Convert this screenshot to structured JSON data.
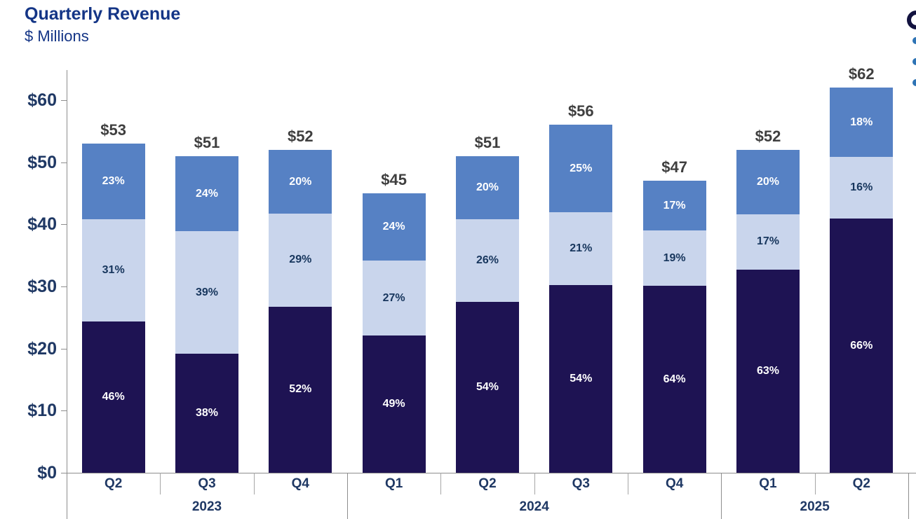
{
  "header": {
    "title": "Quarterly Revenue",
    "subtitle": "$ Millions"
  },
  "colors": {
    "segment_bottom": "#1e1353",
    "segment_middle": "#c9d5ec",
    "segment_top": "#5681c4",
    "title_text": "#143586",
    "axis_label_text": "#1f3864",
    "total_label_text": "#3f3f3f",
    "axis_line": "#8e8e8e",
    "legend_bullet": "#2e74b5"
  },
  "chart_data": {
    "type": "bar",
    "stacked": true,
    "title": "Quarterly Revenue",
    "ylabel": "$ Millions",
    "ylim": [
      0,
      64.85
    ],
    "grid": false,
    "legend_position": "clipped-off-right-edge",
    "y_axis_ticks": [
      {
        "value": 0,
        "label": "$0"
      },
      {
        "value": 10,
        "label": "$10"
      },
      {
        "value": 20,
        "label": "$20"
      },
      {
        "value": 30,
        "label": "$30"
      },
      {
        "value": 40,
        "label": "$40"
      },
      {
        "value": 50,
        "label": "$50"
      },
      {
        "value": 60,
        "label": "$60"
      }
    ],
    "categories": [
      "Q2",
      "Q3",
      "Q4",
      "Q1",
      "Q2",
      "Q3",
      "Q4",
      "Q1",
      "Q2"
    ],
    "year_groups": [
      {
        "label": "2023",
        "span": 3
      },
      {
        "label": "2024",
        "span": 4
      },
      {
        "label": "2025",
        "span": 2
      }
    ],
    "bars": [
      {
        "quarter": "Q2",
        "year": "2023",
        "total": 53,
        "total_label": "$53",
        "segments": [
          {
            "pct": 46,
            "label": "46%"
          },
          {
            "pct": 31,
            "label": "31%"
          },
          {
            "pct": 23,
            "label": "23%"
          }
        ]
      },
      {
        "quarter": "Q3",
        "year": "2023",
        "total": 51,
        "total_label": "$51",
        "segments": [
          {
            "pct": 38,
            "label": "38%"
          },
          {
            "pct": 39,
            "label": "39%"
          },
          {
            "pct": 24,
            "label": "24%"
          }
        ]
      },
      {
        "quarter": "Q4",
        "year": "2023",
        "total": 52,
        "total_label": "$52",
        "segments": [
          {
            "pct": 52,
            "label": "52%"
          },
          {
            "pct": 29,
            "label": "29%"
          },
          {
            "pct": 20,
            "label": "20%"
          }
        ]
      },
      {
        "quarter": "Q1",
        "year": "2024",
        "total": 45,
        "total_label": "$45",
        "segments": [
          {
            "pct": 49,
            "label": "49%"
          },
          {
            "pct": 27,
            "label": "27%"
          },
          {
            "pct": 24,
            "label": "24%"
          }
        ]
      },
      {
        "quarter": "Q2",
        "year": "2024",
        "total": 51,
        "total_label": "$51",
        "segments": [
          {
            "pct": 54,
            "label": "54%"
          },
          {
            "pct": 26,
            "label": "26%"
          },
          {
            "pct": 20,
            "label": "20%"
          }
        ]
      },
      {
        "quarter": "Q3",
        "year": "2024",
        "total": 56,
        "total_label": "$56",
        "segments": [
          {
            "pct": 54,
            "label": "54%"
          },
          {
            "pct": 21,
            "label": "21%"
          },
          {
            "pct": 25,
            "label": "25%"
          }
        ]
      },
      {
        "quarter": "Q4",
        "year": "2024",
        "total": 47,
        "total_label": "$47",
        "segments": [
          {
            "pct": 64,
            "label": "64%"
          },
          {
            "pct": 19,
            "label": "19%"
          },
          {
            "pct": 17,
            "label": "17%"
          }
        ]
      },
      {
        "quarter": "Q1",
        "year": "2025",
        "total": 52,
        "total_label": "$52",
        "segments": [
          {
            "pct": 63,
            "label": "63%"
          },
          {
            "pct": 17,
            "label": "17%"
          },
          {
            "pct": 20,
            "label": "20%"
          }
        ]
      },
      {
        "quarter": "Q2",
        "year": "2025",
        "total": 62,
        "total_label": "$62",
        "segments": [
          {
            "pct": 66,
            "label": "66%"
          },
          {
            "pct": 16,
            "label": "16%"
          },
          {
            "pct": 18,
            "label": "18%"
          }
        ]
      }
    ]
  },
  "legend_fragment": {
    "bullet_count": 3,
    "note_visible_pixels_only": "heading glyph and three bullet markers clipped at right edge"
  }
}
